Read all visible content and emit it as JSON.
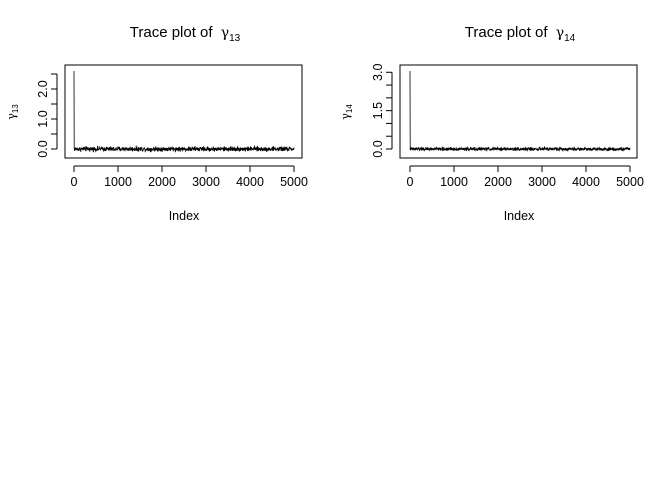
{
  "chart_data": [
    {
      "type": "line",
      "title_prefix": "Trace plot of",
      "title_symbol": "γ",
      "title_subscript": "13",
      "xlabel": "Index",
      "ylabel_symbol": "γ",
      "ylabel_subscript": "13",
      "xlim": [
        0,
        5000
      ],
      "ylim": [
        0,
        2.6
      ],
      "x_ticks": [
        0,
        1000,
        2000,
        3000,
        4000,
        5000
      ],
      "y_ticks": [
        0.0,
        0.5,
        1.0,
        1.5,
        2.0,
        2.5
      ],
      "y_tick_labels": [
        "0.0",
        "1.0",
        "2.0"
      ],
      "grid": false,
      "series": [
        {
          "start_value": 2.6,
          "settled_mean": 0.0,
          "noise_range": [
            -0.12,
            0.12
          ],
          "n_points": 5000
        }
      ]
    },
    {
      "type": "line",
      "title_prefix": "Trace plot of",
      "title_symbol": "γ",
      "title_subscript": "14",
      "xlabel": "Index",
      "ylabel_symbol": "γ",
      "ylabel_subscript": "14",
      "xlim": [
        0,
        5000
      ],
      "ylim": [
        0,
        3.05
      ],
      "x_ticks": [
        0,
        1000,
        2000,
        3000,
        4000,
        5000
      ],
      "y_ticks": [
        0.0,
        0.5,
        1.0,
        1.5,
        2.0,
        2.5,
        3.0
      ],
      "y_tick_labels": [
        "0.0",
        "1.5",
        "3.0"
      ],
      "grid": false,
      "series": [
        {
          "start_value": 3.05,
          "settled_mean": 0.0,
          "noise_range": [
            -0.1,
            0.1
          ],
          "n_points": 5000
        }
      ]
    }
  ]
}
